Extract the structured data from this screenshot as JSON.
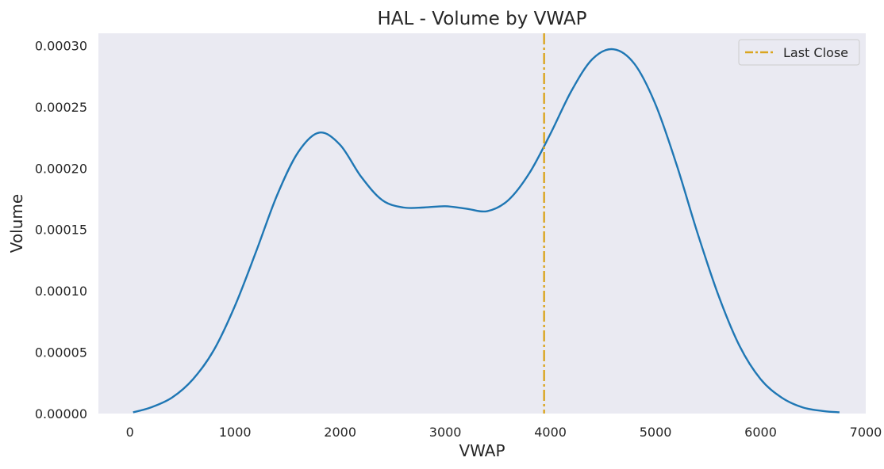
{
  "chart_data": {
    "type": "line",
    "title": "HAL - Volume by VWAP",
    "xlabel": "VWAP",
    "ylabel": "Volume",
    "xlim": [
      -300,
      7000
    ],
    "ylim": [
      0,
      0.00031
    ],
    "x_ticks": [
      "0",
      "1000",
      "2000",
      "3000",
      "4000",
      "5000",
      "6000",
      "7000"
    ],
    "y_ticks": [
      "0.00000",
      "0.00005",
      "0.00010",
      "0.00015",
      "0.00020",
      "0.00025",
      "0.00030"
    ],
    "grid": false,
    "background": "#eaeaf2",
    "legend_position": "top-right",
    "series": [
      {
        "color": "#1f77b4",
        "x": [
          30,
          200,
          400,
          600,
          800,
          1000,
          1200,
          1400,
          1600,
          1800,
          2000,
          2200,
          2400,
          2600,
          2800,
          3000,
          3200,
          3400,
          3600,
          3800,
          4000,
          4200,
          4400,
          4600,
          4800,
          5000,
          5200,
          5400,
          5600,
          5800,
          6000,
          6200,
          6400,
          6600,
          6750
        ],
        "y": [
          1e-06,
          5e-06,
          1.3e-05,
          2.8e-05,
          5.2e-05,
          8.8e-05,
          0.000132,
          0.000178,
          0.000213,
          0.000229,
          0.000219,
          0.000193,
          0.000174,
          0.000168,
          0.000168,
          0.000169,
          0.000167,
          0.000165,
          0.000174,
          0.000196,
          0.000228,
          0.000263,
          0.000289,
          0.000297,
          0.000285,
          0.000252,
          0.000203,
          0.000147,
          9.6e-05,
          5.5e-05,
          2.8e-05,
          1.3e-05,
          5e-06,
          2e-06,
          1e-06
        ]
      }
    ],
    "vline": {
      "name": "Last Close",
      "x": 3940,
      "color": "#daa520"
    }
  }
}
